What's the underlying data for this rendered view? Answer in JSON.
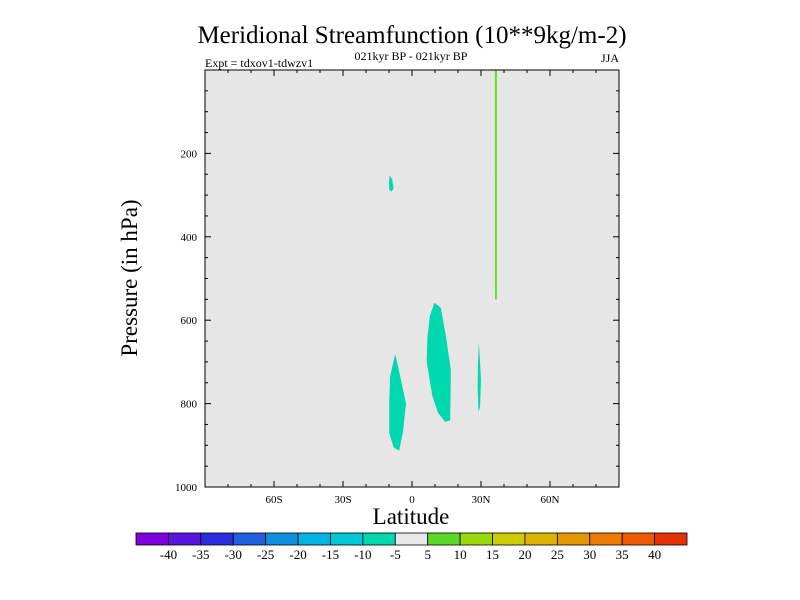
{
  "chart_data": {
    "type": "contour",
    "title": "Meridional Streamfunction (10**9kg/m-2)",
    "subtitle_center": "021kyr BP - 021kyr BP",
    "subtitle_left": "Expt = tdxov1-tdwzv1",
    "subtitle_right": "JJA",
    "xlabel": "Latitude",
    "ylabel": "Pressure (in hPa)",
    "xlim": [
      -90,
      90
    ],
    "ylim": [
      0,
      1000
    ],
    "y_inverted": true,
    "x_ticks": [
      {
        "value": -60,
        "label": "60S"
      },
      {
        "value": -30,
        "label": "30S"
      },
      {
        "value": 0,
        "label": "0"
      },
      {
        "value": 30,
        "label": "30N"
      },
      {
        "value": 60,
        "label": "60N"
      }
    ],
    "y_ticks": [
      {
        "value": 200,
        "label": "200"
      },
      {
        "value": 400,
        "label": "400"
      },
      {
        "value": 600,
        "label": "600"
      },
      {
        "value": 800,
        "label": "800"
      },
      {
        "value": 1000,
        "label": "1000"
      }
    ],
    "background_color": "#e6e6e6",
    "regions": [
      {
        "name": "small-patch-10S-270hPa",
        "level": "-10 to -5",
        "color": "#00d8b0",
        "outline": [
          [
            -9.7,
            253
          ],
          [
            -8.6,
            262
          ],
          [
            -8.0,
            284
          ],
          [
            -8.9,
            292
          ],
          [
            -9.9,
            286
          ],
          [
            -10.0,
            268
          ]
        ]
      },
      {
        "name": "cell-10S-low",
        "level": "-10 to -5",
        "color": "#00d8b0",
        "outline": [
          [
            -7.3,
            681
          ],
          [
            -5.3,
            730
          ],
          [
            -2.6,
            800
          ],
          [
            -4.0,
            870
          ],
          [
            -5.6,
            913
          ],
          [
            -8.0,
            905
          ],
          [
            -9.9,
            870
          ],
          [
            -9.9,
            800
          ],
          [
            -9.5,
            735
          ]
        ]
      },
      {
        "name": "cell-10N",
        "level": "-10 to -5",
        "color": "#00d8b0",
        "outline": [
          [
            9.7,
            558
          ],
          [
            12.5,
            570
          ],
          [
            14.8,
            640
          ],
          [
            16.9,
            720
          ],
          [
            16.6,
            840
          ],
          [
            14.4,
            844
          ],
          [
            11.3,
            822
          ],
          [
            8.8,
            780
          ],
          [
            6.4,
            700
          ],
          [
            6.7,
            640
          ],
          [
            7.8,
            590
          ]
        ]
      },
      {
        "name": "sliver-29N",
        "level": "-10 to -5",
        "color": "#00d8b0",
        "outline": [
          [
            29.1,
            655
          ],
          [
            30.0,
            740
          ],
          [
            29.6,
            808
          ],
          [
            28.9,
            820
          ],
          [
            28.5,
            760
          ],
          [
            28.7,
            700
          ]
        ]
      },
      {
        "name": "line-36N",
        "level": "5 to 10",
        "color": "#66dd22",
        "outline": [
          [
            36.0,
            0
          ],
          [
            36.9,
            0
          ],
          [
            36.9,
            550
          ],
          [
            36.1,
            550
          ]
        ]
      }
    ],
    "colorbar": {
      "colors": [
        "#8000e0",
        "#5a14e0",
        "#2a2ee0",
        "#1f5fe0",
        "#0e90e0",
        "#00b4e6",
        "#00c8d6",
        "#00d8b0",
        "#e8e8e8",
        "#5ad828",
        "#9ad80a",
        "#cccc00",
        "#e0b200",
        "#e69600",
        "#ee7a00",
        "#ee5a00",
        "#e63200"
      ],
      "labels": [
        "-40",
        "-35",
        "-30",
        "-25",
        "-20",
        "-15",
        "-10",
        "-5",
        "5",
        "10",
        "15",
        "20",
        "25",
        "30",
        "35",
        "40"
      ]
    }
  }
}
